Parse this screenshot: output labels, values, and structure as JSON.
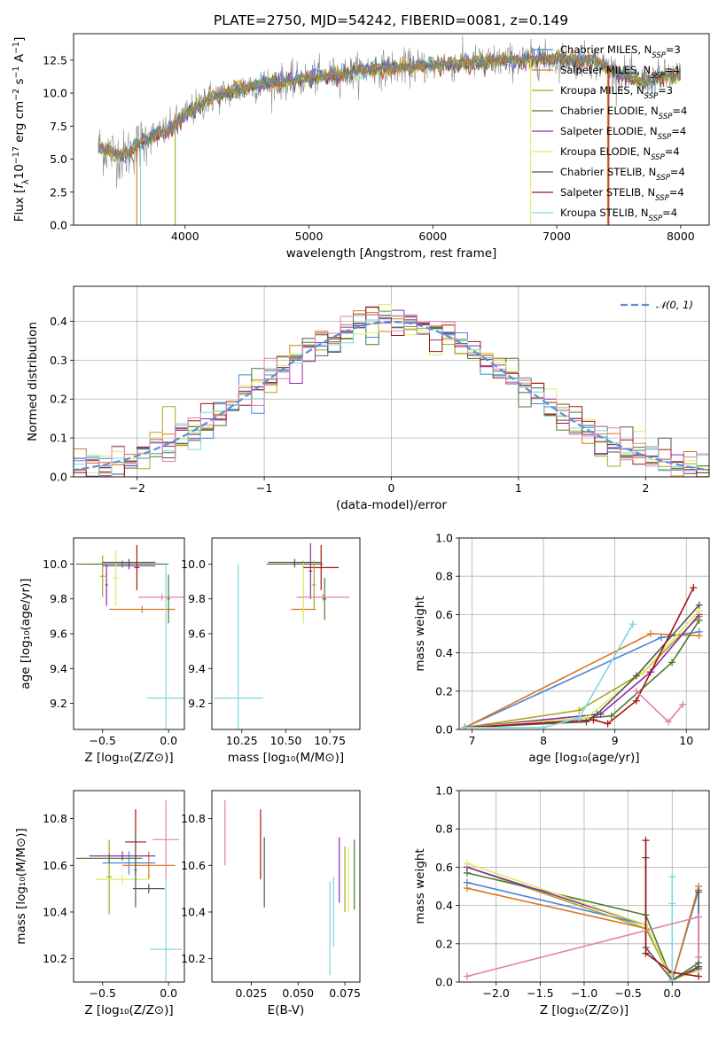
{
  "figure_title": "PLATE=2750, MJD=54242, FIBERID=0081, z=0.149",
  "colors": {
    "Chabrier MILES": "#4a86d8",
    "Salpeter MILES": "#d9781e",
    "Kroupa MILES": "#a8a81e",
    "Chabrier ELODIE": "#4a7a30",
    "Salpeter ELODIE": "#8e2bb0",
    "Kroupa ELODIE": "#ddec60",
    "Chabrier STELIB": "#555555",
    "Salpeter STELIB": "#a51515",
    "Kroupa STELIB": "#7dd8e0",
    "data": "#8a8a8a",
    "pink": "#e080b0",
    "gaussian": "#5b8fd6"
  },
  "chart_data": [
    {
      "panel": "spectrum",
      "type": "line",
      "xlabel": "wavelength [Angstrom, rest frame]",
      "ylabel": "Flux [f_λ 10^-17 erg cm^-2 s^-1 A^-1]",
      "xlim": [
        3100,
        8230
      ],
      "ylim": [
        0,
        14.5
      ],
      "xticks": [
        4000,
        5000,
        6000,
        7000,
        8000
      ],
      "yticks": [
        0.0,
        2.5,
        5.0,
        7.5,
        10.0,
        12.5
      ],
      "yticklabels": [
        "0.0",
        "2.5",
        "5.0",
        "7.5",
        "10.0",
        "12.5"
      ],
      "legend_position": "upper right",
      "legend": [
        {
          "label": "Chabrier MILES, N_SSP=3",
          "name": "Chabrier MILES",
          "sub": "SSP",
          "eq": "=3"
        },
        {
          "label": "Salpeter MILES, N_SSP=4",
          "name": "Salpeter MILES",
          "sub": "SSP",
          "eq": "=4"
        },
        {
          "label": "Kroupa MILES, N_SSP=3",
          "name": "Kroupa MILES",
          "sub": "SSP",
          "eq": "=3"
        },
        {
          "label": "Chabrier ELODIE, N_SSP=4",
          "name": "Chabrier ELODIE",
          "sub": "SSP",
          "eq": "=4"
        },
        {
          "label": "Salpeter ELODIE, N_SSP=4",
          "name": "Salpeter ELODIE",
          "sub": "SSP",
          "eq": "=4"
        },
        {
          "label": "Kroupa ELODIE, N_SSP=4",
          "name": "Kroupa ELODIE",
          "sub": "SSP",
          "eq": "=4"
        },
        {
          "label": "Chabrier STELIB, N_SSP=4",
          "name": "Chabrier STELIB",
          "sub": "SSP",
          "eq": "=4"
        },
        {
          "label": "Salpeter STELIB, N_SSP=4",
          "name": "Salpeter STELIB",
          "sub": "SSP",
          "eq": "=4"
        },
        {
          "label": "Kroupa STELIB, N_SSP=4",
          "name": "Kroupa STELIB",
          "sub": "SSP",
          "eq": "=4"
        }
      ],
      "continuum_knots": [
        [
          3300,
          5.9
        ],
        [
          3500,
          5.2
        ],
        [
          3700,
          6.6
        ],
        [
          3850,
          7.1
        ],
        [
          4000,
          8.3
        ],
        [
          4200,
          9.6
        ],
        [
          4500,
          10.5
        ],
        [
          5000,
          11.1
        ],
        [
          5500,
          11.8
        ],
        [
          6000,
          12.1
        ],
        [
          6500,
          12.4
        ],
        [
          7000,
          12.6
        ],
        [
          7300,
          12.4
        ],
        [
          7500,
          11.5
        ],
        [
          7700,
          10.8
        ],
        [
          7900,
          11.3
        ],
        [
          8000,
          11.2
        ]
      ],
      "dips_to_zero": [
        {
          "x": 3610,
          "series": "Salpeter MILES"
        },
        {
          "x": 3640,
          "series": "Kroupa STELIB"
        },
        {
          "x": 3920,
          "series": "Kroupa MILES"
        },
        {
          "x": 6790,
          "series": "Kroupa ELODIE"
        },
        {
          "x": 7410,
          "series": "Salpeter MILES"
        },
        {
          "x": 7420,
          "series": "Salpeter STELIB"
        }
      ]
    },
    {
      "panel": "residual-distribution",
      "type": "step",
      "xlabel": "(data-model)/error",
      "ylabel": "Normed distribution",
      "xlim": [
        -2.5,
        2.5
      ],
      "ylim": [
        0,
        0.49
      ],
      "xticks": [
        -2,
        -1,
        0,
        1,
        2
      ],
      "xticklabels": [
        "−2",
        "−1",
        "0",
        "1",
        "2"
      ],
      "yticks": [
        0.0,
        0.1,
        0.2,
        0.3,
        0.4
      ],
      "yticklabels": [
        "0.0",
        "0.1",
        "0.2",
        "0.3",
        "0.4"
      ],
      "grid": true,
      "gaussian_label": "𝒩(0, 1)",
      "bin_width": 0.1
    },
    {
      "panel": "age-vs-Z",
      "type": "errorbar",
      "xlabel": "Z [log₁₀(Z/Z⊙)]",
      "ylabel": "age  [log₁₀(age/yr)]",
      "xlim": [
        -0.72,
        0.12
      ],
      "ylim": [
        9.05,
        10.15
      ],
      "xticks": [
        -0.5,
        0.0
      ],
      "xticklabels": [
        "−0.5",
        "0.0"
      ],
      "yticks": [
        9.2,
        9.4,
        9.6,
        9.8,
        10.0
      ],
      "yticklabels": [
        "9.2",
        "9.4",
        "9.6",
        "9.8",
        "10.0"
      ],
      "points": [
        {
          "series": "Chabrier MILES",
          "x": -0.3,
          "xerr": 0.25,
          "y": 10.0,
          "yerr": 0.02
        },
        {
          "series": "Salpeter MILES",
          "x": -0.2,
          "xerr": 0.25,
          "y": 9.74,
          "yerr": 0.02
        },
        {
          "series": "Kroupa MILES",
          "x": -0.5,
          "xerr": 0.02,
          "y": 9.93,
          "yerr": 0.12
        },
        {
          "series": "Chabrier ELODIE",
          "x": -0.35,
          "xerr": 0.35,
          "y": 10.0,
          "yerr": 0.02
        },
        {
          "series": "Salpeter ELODIE",
          "x": -0.3,
          "xerr": 0.2,
          "y": 9.99,
          "yerr": 0.02
        },
        {
          "series": "Kroupa ELODIE",
          "x": -0.4,
          "xerr": 0.02,
          "y": 9.92,
          "yerr": 0.16
        },
        {
          "series": "Chabrier STELIB",
          "x": -0.3,
          "xerr": 0.2,
          "y": 10.01,
          "yerr": 0.02
        },
        {
          "series": "Salpeter STELIB",
          "x": -0.24,
          "xerr": 0.02,
          "y": 9.98,
          "yerr": 0.13
        },
        {
          "series": "Kroupa STELIB",
          "x": -0.02,
          "xerr": 0.14,
          "y": 9.23,
          "yerr": 0.77
        },
        {
          "series": "pink",
          "x": -0.05,
          "xerr": 0.18,
          "y": 9.81,
          "yerr": 0.02
        },
        {
          "series": "Salpeter ELODIE",
          "x": -0.47,
          "xerr": 0.01,
          "y": 9.88,
          "yerr": 0.12
        },
        {
          "series": "Chabrier ELODIE",
          "x": 0.0,
          "xerr": 0.01,
          "y": 9.8,
          "yerr": 0.14
        }
      ]
    },
    {
      "panel": "age-vs-mass",
      "type": "errorbar",
      "xlabel": "mass [log₁₀(M/M⊙)]",
      "ylabel": "",
      "xlim": [
        10.08,
        10.92
      ],
      "ylim": [
        9.05,
        10.15
      ],
      "xticks": [
        10.25,
        10.5,
        10.75
      ],
      "xticklabels": [
        "10.25",
        "10.50",
        "10.75"
      ],
      "yticks": [
        9.2,
        9.4,
        9.6,
        9.8,
        10.0
      ],
      "yticklabels": [
        "9.2",
        "9.4",
        "9.6",
        "9.8",
        "10.0"
      ],
      "points": [
        {
          "series": "Chabrier MILES",
          "x": 10.6,
          "xerr": 0.07,
          "y": 10.0,
          "yerr": 0.02
        },
        {
          "series": "Salpeter MILES",
          "x": 10.6,
          "xerr": 0.07,
          "y": 9.74,
          "yerr": 0.02
        },
        {
          "series": "Chabrier ELODIE",
          "x": 10.55,
          "xerr": 0.16,
          "y": 10.0,
          "yerr": 0.02
        },
        {
          "series": "Salpeter ELODIE",
          "x": 10.64,
          "xerr": 0.01,
          "y": 9.96,
          "yerr": 0.16
        },
        {
          "series": "Kroupa ELODIE",
          "x": 10.6,
          "xerr": 0.01,
          "y": 9.84,
          "yerr": 0.18
        },
        {
          "series": "Chabrier STELIB",
          "x": 10.55,
          "xerr": 0.15,
          "y": 10.01,
          "yerr": 0.02
        },
        {
          "series": "Salpeter STELIB",
          "x": 10.7,
          "xerr": 0.1,
          "y": 9.98,
          "yerr": 0.13
        },
        {
          "series": "Kroupa STELIB",
          "x": 10.23,
          "xerr": 0.14,
          "y": 9.23,
          "yerr": 0.77
        },
        {
          "series": "pink",
          "x": 10.71,
          "xerr": 0.15,
          "y": 9.81,
          "yerr": 0.02
        },
        {
          "series": "Kroupa MILES",
          "x": 10.66,
          "xerr": 0.01,
          "y": 9.88,
          "yerr": 0.14
        },
        {
          "series": "Chabrier ELODIE",
          "x": 10.72,
          "xerr": 0.01,
          "y": 9.8,
          "yerr": 0.12
        }
      ]
    },
    {
      "panel": "mass-weight-vs-age",
      "type": "line",
      "xlabel": "age  [log₁₀(age/yr)]",
      "ylabel": "mass weight",
      "xlim": [
        6.82,
        10.32
      ],
      "ylim": [
        0,
        1.0
      ],
      "xticks": [
        7,
        8,
        9,
        10
      ],
      "xticklabels": [
        "7",
        "8",
        "9",
        "10"
      ],
      "yticks": [
        0.0,
        0.2,
        0.4,
        0.6,
        0.8,
        1.0
      ],
      "yticklabels": [
        "0.0",
        "0.2",
        "0.4",
        "0.6",
        "0.8",
        "1.0"
      ],
      "grid": true,
      "series": [
        {
          "name": "Chabrier MILES",
          "x": [
            6.9,
            9.65,
            10.18
          ],
          "y": [
            0.01,
            0.48,
            0.51
          ]
        },
        {
          "name": "Salpeter MILES",
          "x": [
            6.9,
            9.5,
            10.18
          ],
          "y": [
            0.01,
            0.5,
            0.49
          ]
        },
        {
          "name": "Kroupa MILES",
          "x": [
            6.9,
            8.5,
            9.4,
            10.18
          ],
          "y": [
            0.01,
            0.1,
            0.3,
            0.59
          ]
        },
        {
          "name": "Chabrier ELODIE",
          "x": [
            6.9,
            8.95,
            9.8,
            10.18
          ],
          "y": [
            0.01,
            0.07,
            0.35,
            0.57
          ]
        },
        {
          "name": "Salpeter ELODIE",
          "x": [
            6.9,
            8.8,
            9.5,
            10.18
          ],
          "y": [
            0.01,
            0.08,
            0.3,
            0.6
          ]
        },
        {
          "name": "Kroupa ELODIE",
          "x": [
            6.9,
            8.6,
            9.4,
            10.18
          ],
          "y": [
            0.01,
            0.06,
            0.3,
            0.62
          ]
        },
        {
          "name": "Chabrier STELIB",
          "x": [
            6.9,
            8.6,
            8.75,
            9.3,
            10.18
          ],
          "y": [
            0.01,
            0.04,
            0.08,
            0.28,
            0.65
          ]
        },
        {
          "name": "Salpeter STELIB",
          "x": [
            6.9,
            8.7,
            8.9,
            9.3,
            10.1
          ],
          "y": [
            0.01,
            0.05,
            0.03,
            0.15,
            0.74
          ]
        },
        {
          "name": "Kroupa STELIB",
          "x": [
            6.9,
            8.0,
            8.5,
            9.25
          ],
          "y": [
            0.01,
            0.01,
            0.06,
            0.55
          ]
        },
        {
          "name": "pink",
          "x": [
            9.3,
            9.75,
            9.95
          ],
          "y": [
            0.2,
            0.04,
            0.13
          ]
        }
      ]
    },
    {
      "panel": "mass-vs-Z",
      "type": "errorbar",
      "xlabel": "Z [log₁₀(Z/Z⊙)]",
      "ylabel": "mass [log₁₀(M/M⊙)]",
      "xlim": [
        -0.72,
        0.12
      ],
      "ylim": [
        10.1,
        10.92
      ],
      "xticks": [
        -0.5,
        0.0
      ],
      "xticklabels": [
        "−0.5",
        "0.0"
      ],
      "yticks": [
        10.2,
        10.4,
        10.6,
        10.8
      ],
      "yticklabels": [
        "10.2",
        "10.4",
        "10.6",
        "10.8"
      ],
      "points": [
        {
          "series": "Chabrier MILES",
          "x": -0.3,
          "xerr": 0.2,
          "y": 10.61,
          "yerr": 0.05
        },
        {
          "series": "Salpeter MILES",
          "x": -0.15,
          "xerr": 0.2,
          "y": 10.6,
          "yerr": 0.06
        },
        {
          "series": "Kroupa MILES",
          "x": -0.45,
          "xerr": 0.02,
          "y": 10.55,
          "yerr": 0.16
        },
        {
          "series": "Chabrier ELODIE",
          "x": -0.45,
          "xerr": 0.25,
          "y": 10.63,
          "yerr": 0.02
        },
        {
          "series": "Salpeter ELODIE",
          "x": -0.35,
          "xerr": 0.25,
          "y": 10.64,
          "yerr": 0.02
        },
        {
          "series": "Kroupa ELODIE",
          "x": -0.35,
          "xerr": 0.2,
          "y": 10.54,
          "yerr": 0.02
        },
        {
          "series": "Chabrier STELIB",
          "x": -0.15,
          "xerr": 0.12,
          "y": 10.5,
          "yerr": 0.02
        },
        {
          "series": "Salpeter STELIB",
          "x": -0.25,
          "xerr": 0.08,
          "y": 10.7,
          "yerr": 0.14
        },
        {
          "series": "Kroupa STELIB",
          "x": -0.02,
          "xerr": 0.12,
          "y": 10.24,
          "yerr": 0.3
        },
        {
          "series": "pink",
          "x": -0.02,
          "xerr": 0.1,
          "y": 10.71,
          "yerr": 0.17
        },
        {
          "series": "Chabrier STELIB",
          "x": -0.25,
          "xerr": 0.01,
          "y": 10.58,
          "yerr": 0.16
        }
      ]
    },
    {
      "panel": "mass-vs-EBV",
      "type": "errorbar",
      "xlabel": "E(B-V)",
      "ylabel": "",
      "xlim": [
        0.004,
        0.083
      ],
      "ylim": [
        10.1,
        10.92
      ],
      "xticks": [
        0.025,
        0.05,
        0.075
      ],
      "xticklabels": [
        "0.025",
        "0.050",
        "0.075"
      ],
      "yticks": [
        10.2,
        10.4,
        10.6,
        10.8
      ],
      "yticklabels": [
        "10.2",
        "10.4",
        "10.6",
        "10.8"
      ],
      "points": [
        {
          "series": "pink",
          "x": 0.011,
          "xerr": 0,
          "y": 10.74,
          "yerr": 0.14
        },
        {
          "series": "Salpeter STELIB",
          "x": 0.03,
          "xerr": 0,
          "y": 10.69,
          "yerr": 0.15
        },
        {
          "series": "Chabrier STELIB",
          "x": 0.032,
          "xerr": 0,
          "y": 10.57,
          "yerr": 0.15
        },
        {
          "series": "Kroupa STELIB",
          "x": 0.067,
          "xerr": 0,
          "y": 10.33,
          "yerr": 0.2
        },
        {
          "series": "Salpeter ELODIE",
          "x": 0.072,
          "xerr": 0,
          "y": 10.58,
          "yerr": 0.14
        },
        {
          "series": "Kroupa MILES",
          "x": 0.075,
          "xerr": 0,
          "y": 10.54,
          "yerr": 0.14
        },
        {
          "series": "Kroupa ELODIE",
          "x": 0.077,
          "xerr": 0,
          "y": 10.54,
          "yerr": 0.14
        },
        {
          "series": "Chabrier ELODIE",
          "x": 0.08,
          "xerr": 0,
          "y": 10.56,
          "yerr": 0.15
        },
        {
          "series": "Kroupa STELIB",
          "x": 0.069,
          "xerr": 0,
          "y": 10.4,
          "yerr": 0.15
        }
      ]
    },
    {
      "panel": "mass-weight-vs-Z",
      "type": "line",
      "xlabel": "Z [log₁₀(Z/Z⊙)]",
      "ylabel": "mass weight",
      "xlim": [
        -2.42,
        0.42
      ],
      "ylim": [
        0,
        1.0
      ],
      "xticks": [
        -2.0,
        -1.5,
        -1.0,
        -0.5,
        0.0
      ],
      "xticklabels": [
        "−2.0",
        "−1.5",
        "−1.0",
        "−0.5",
        "0.0"
      ],
      "yticks": [
        0.0,
        0.2,
        0.4,
        0.6,
        0.8,
        1.0
      ],
      "yticklabels": [
        "0.0",
        "0.2",
        "0.4",
        "0.6",
        "0.8",
        "1.0"
      ],
      "grid": true,
      "series": [
        {
          "name": "Chabrier MILES",
          "x": [
            -2.33,
            -0.3,
            0.0,
            0.3
          ],
          "y": [
            0.52,
            0.3,
            0.01,
            0.48
          ]
        },
        {
          "name": "Salpeter MILES",
          "x": [
            -2.33,
            -0.3,
            0.0,
            0.3
          ],
          "y": [
            0.49,
            0.28,
            0.01,
            0.5
          ]
        },
        {
          "name": "Kroupa MILES",
          "x": [
            -2.33,
            -0.3,
            0.0,
            0.3
          ],
          "y": [
            0.6,
            0.28,
            0.01,
            0.08
          ]
        },
        {
          "name": "Chabrier ELODIE",
          "x": [
            -2.33,
            -0.3,
            0.0,
            0.3
          ],
          "y": [
            0.57,
            0.35,
            0.01,
            0.1
          ]
        },
        {
          "name": "Salpeter ELODIE",
          "x": [
            -2.33,
            -0.3,
            0.0,
            0.3
          ],
          "y": [
            0.6,
            0.3,
            0.01,
            0.07
          ]
        },
        {
          "name": "Kroupa ELODIE",
          "x": [
            -2.33,
            -0.3,
            0.0,
            0.3
          ],
          "y": [
            0.62,
            0.3,
            0.01,
            0.06
          ]
        },
        {
          "name": "Chabrier STELIB",
          "x": [
            -0.3,
            -0.3,
            0.0,
            0.3,
            0.3
          ],
          "y": [
            0.65,
            0.18,
            0.01,
            0.08,
            0.47
          ]
        },
        {
          "name": "Salpeter STELIB",
          "x": [
            -0.3,
            -0.3,
            0.0,
            0.3
          ],
          "y": [
            0.74,
            0.15,
            0.05,
            0.03
          ]
        },
        {
          "name": "Kroupa STELIB",
          "x": [
            0.0,
            0.0,
            0.0
          ],
          "y": [
            0.55,
            0.41,
            0.01
          ]
        },
        {
          "name": "pink",
          "x": [
            -2.33,
            0.3,
            0.3
          ],
          "y": [
            0.03,
            0.34,
            0.13
          ]
        }
      ]
    }
  ]
}
